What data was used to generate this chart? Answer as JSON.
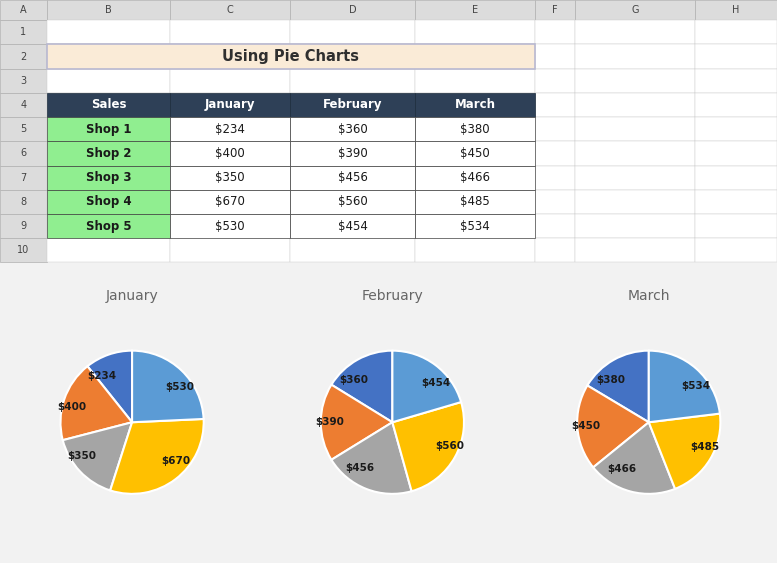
{
  "title": "Using Pie Charts",
  "title_bg": "#FAEBD7",
  "title_border": "#B8B8D0",
  "header_bg": "#2E4057",
  "row_label_bg": "#90EE90",
  "shops": [
    "Shop 1",
    "Shop 2",
    "Shop 3",
    "Shop 4",
    "Shop 5"
  ],
  "months": [
    "January",
    "February",
    "March"
  ],
  "table_data": {
    "January": [
      234,
      400,
      350,
      670,
      530
    ],
    "February": [
      360,
      390,
      456,
      560,
      454
    ],
    "March": [
      380,
      450,
      466,
      485,
      534
    ]
  },
  "colors": [
    "#4472C4",
    "#ED7D31",
    "#A5A5A5",
    "#FFC000",
    "#5B9BD5"
  ],
  "bg_color": "#F2F2F2",
  "chart_bg": "#FFFFFF",
  "chart_border": "#CCCCCC",
  "pie_label_fontsize": 7.5,
  "pie_title_fontsize": 10,
  "legend_fontsize": 6.8,
  "startangle": 90
}
